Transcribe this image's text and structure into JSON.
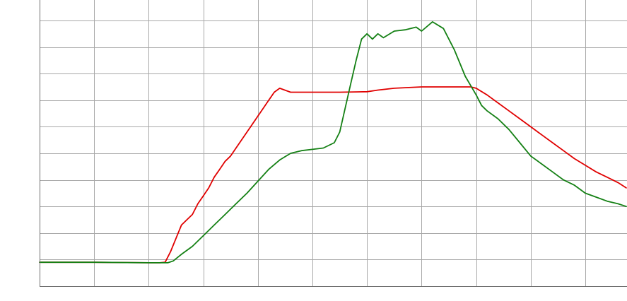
{
  "chart_data": {
    "type": "line",
    "title": "",
    "xlabel": "",
    "ylabel": "",
    "xlim": [
      0,
      10.75
    ],
    "ylim": [
      0,
      10.75
    ],
    "grid": true,
    "legend": "none",
    "series": [
      {
        "color": "#e00000",
        "x": [
          0,
          1,
          2,
          2.2,
          2.3,
          2.4,
          2.5,
          2.6,
          2.7,
          2.8,
          2.9,
          3.0,
          3.1,
          3.2,
          3.3,
          3.4,
          3.5,
          3.6,
          3.7,
          3.8,
          3.9,
          4.0,
          4.1,
          4.2,
          4.3,
          4.4,
          4.6,
          4.8,
          5.0,
          5.5,
          6.0,
          6.2,
          6.5,
          7.0,
          7.5,
          7.9,
          8.0,
          8.2,
          8.4,
          8.6,
          8.8,
          9.0,
          9.2,
          9.4,
          9.6,
          9.8,
          10.0,
          10.2,
          10.4,
          10.6,
          10.75
        ],
        "y": [
          0.9,
          0.9,
          0.88,
          0.88,
          0.9,
          1.3,
          1.8,
          2.3,
          2.5,
          2.7,
          3.1,
          3.4,
          3.7,
          4.1,
          4.4,
          4.7,
          4.9,
          5.2,
          5.5,
          5.8,
          6.1,
          6.4,
          6.7,
          7.0,
          7.3,
          7.45,
          7.3,
          7.3,
          7.3,
          7.3,
          7.32,
          7.38,
          7.45,
          7.5,
          7.5,
          7.5,
          7.45,
          7.2,
          6.9,
          6.6,
          6.3,
          6.0,
          5.7,
          5.4,
          5.1,
          4.8,
          4.55,
          4.3,
          4.1,
          3.9,
          3.7
        ]
      },
      {
        "color": "#148014",
        "x": [
          0,
          1,
          2,
          2.2,
          2.35,
          2.45,
          2.6,
          2.8,
          3.0,
          3.2,
          3.4,
          3.6,
          3.8,
          4.0,
          4.2,
          4.4,
          4.6,
          4.8,
          5.0,
          5.2,
          5.4,
          5.5,
          5.6,
          5.7,
          5.8,
          5.9,
          6.0,
          6.1,
          6.2,
          6.3,
          6.5,
          6.7,
          6.9,
          7.0,
          7.2,
          7.4,
          7.6,
          7.8,
          8.0,
          8.1,
          8.2,
          8.4,
          8.6,
          8.8,
          9.0,
          9.2,
          9.4,
          9.6,
          9.8,
          10.0,
          10.2,
          10.4,
          10.6,
          10.75
        ],
        "y": [
          0.9,
          0.9,
          0.88,
          0.88,
          0.88,
          0.95,
          1.2,
          1.5,
          1.9,
          2.3,
          2.7,
          3.1,
          3.5,
          3.95,
          4.4,
          4.75,
          5.0,
          5.1,
          5.15,
          5.2,
          5.4,
          5.8,
          6.7,
          7.6,
          8.5,
          9.3,
          9.5,
          9.3,
          9.5,
          9.35,
          9.6,
          9.65,
          9.75,
          9.6,
          9.95,
          9.7,
          8.9,
          7.9,
          7.2,
          6.8,
          6.6,
          6.3,
          5.9,
          5.4,
          4.9,
          4.6,
          4.3,
          4.0,
          3.8,
          3.5,
          3.35,
          3.2,
          3.1,
          3.0
        ]
      }
    ]
  }
}
